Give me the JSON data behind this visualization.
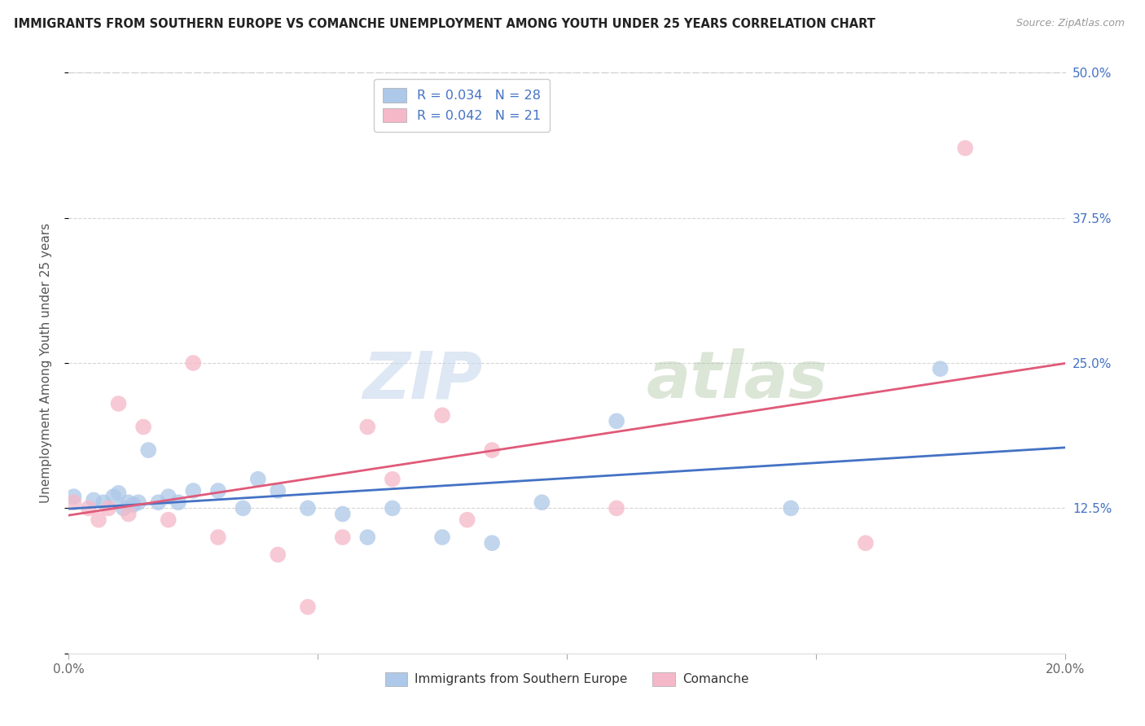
{
  "title": "IMMIGRANTS FROM SOUTHERN EUROPE VS COMANCHE UNEMPLOYMENT AMONG YOUTH UNDER 25 YEARS CORRELATION CHART",
  "source": "Source: ZipAtlas.com",
  "ylabel": "Unemployment Among Youth under 25 years",
  "xlim": [
    0.0,
    0.2
  ],
  "ylim": [
    0.0,
    0.5
  ],
  "xticks": [
    0.0,
    0.05,
    0.1,
    0.15,
    0.2
  ],
  "yticks": [
    0.0,
    0.125,
    0.25,
    0.375,
    0.5
  ],
  "ytick_labels_right": [
    "",
    "12.5%",
    "25.0%",
    "37.5%",
    "50.0%"
  ],
  "xtick_labels": [
    "0.0%",
    "",
    "",
    "",
    "20.0%"
  ],
  "legend_R_blue": "0.034",
  "legend_N_blue": "28",
  "legend_R_pink": "0.042",
  "legend_N_pink": "21",
  "legend_label_blue": "Immigrants from Southern Europe",
  "legend_label_pink": "Comanche",
  "blue_color": "#adc8e8",
  "pink_color": "#f5b8c8",
  "trendline_blue_color": "#4472C4",
  "trendline_pink_color": "#e05a7a",
  "watermark_zip": "ZIP",
  "watermark_atlas": "atlas",
  "blue_scatter_x": [
    0.001,
    0.005,
    0.007,
    0.009,
    0.01,
    0.011,
    0.012,
    0.013,
    0.014,
    0.016,
    0.018,
    0.02,
    0.022,
    0.025,
    0.03,
    0.035,
    0.038,
    0.042,
    0.048,
    0.055,
    0.06,
    0.065,
    0.075,
    0.085,
    0.095,
    0.11,
    0.145,
    0.175
  ],
  "blue_scatter_y": [
    0.135,
    0.132,
    0.13,
    0.135,
    0.138,
    0.125,
    0.13,
    0.128,
    0.13,
    0.175,
    0.13,
    0.135,
    0.13,
    0.14,
    0.14,
    0.125,
    0.15,
    0.14,
    0.125,
    0.12,
    0.1,
    0.125,
    0.1,
    0.095,
    0.13,
    0.2,
    0.125,
    0.245
  ],
  "pink_scatter_x": [
    0.001,
    0.004,
    0.006,
    0.008,
    0.01,
    0.012,
    0.015,
    0.02,
    0.025,
    0.03,
    0.042,
    0.048,
    0.055,
    0.06,
    0.065,
    0.075,
    0.08,
    0.085,
    0.11,
    0.16,
    0.18
  ],
  "pink_scatter_y": [
    0.13,
    0.125,
    0.115,
    0.125,
    0.215,
    0.12,
    0.195,
    0.115,
    0.25,
    0.1,
    0.085,
    0.04,
    0.1,
    0.195,
    0.15,
    0.205,
    0.115,
    0.175,
    0.125,
    0.095,
    0.435
  ]
}
